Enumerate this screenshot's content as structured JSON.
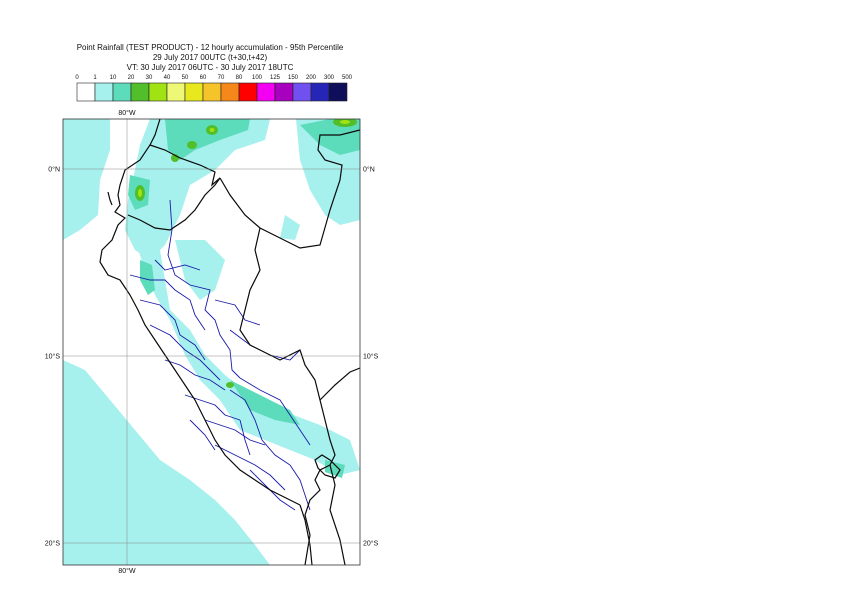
{
  "header": {
    "line1": "Point Rainfall (TEST PRODUCT) - 12 hourly accumulation - 95th Percentile",
    "line2": "29 July 2017 00UTC (t+30,t+42)",
    "line3": "VT: 30 July 2017 06UTC - 30 July 2017 18UTC"
  },
  "legend": {
    "ticks": [
      "0",
      "1",
      "10",
      "20",
      "30",
      "40",
      "50",
      "60",
      "70",
      "80",
      "100",
      "125",
      "150",
      "200",
      "300",
      "500"
    ],
    "colors": [
      "#ffffff",
      "#a6f0ee",
      "#5cdcbb",
      "#52be2a",
      "#a1e312",
      "#eef776",
      "#e8e81f",
      "#f5c42b",
      "#f5871b",
      "#ff0000",
      "#f300f3",
      "#a700bf",
      "#7050f0",
      "#2626b6",
      "#0e0e5a"
    ]
  },
  "map": {
    "lat_labels": [
      {
        "text": "0°N",
        "lat": 0
      },
      {
        "text": "10°S",
        "lat": -10
      },
      {
        "text": "20°S",
        "lat": -20
      }
    ],
    "lon_labels": [
      {
        "text": "80°W",
        "lon": -80
      }
    ],
    "land_color": "#ffffff",
    "rain_light": "#a6f0ee",
    "rain_mod": "#5cdcbb",
    "rain_heavy": "#52be2a",
    "rain_heavier": "#a1e312",
    "border_color": "#0a0a0a",
    "admin_color": "#1a1aa8"
  }
}
